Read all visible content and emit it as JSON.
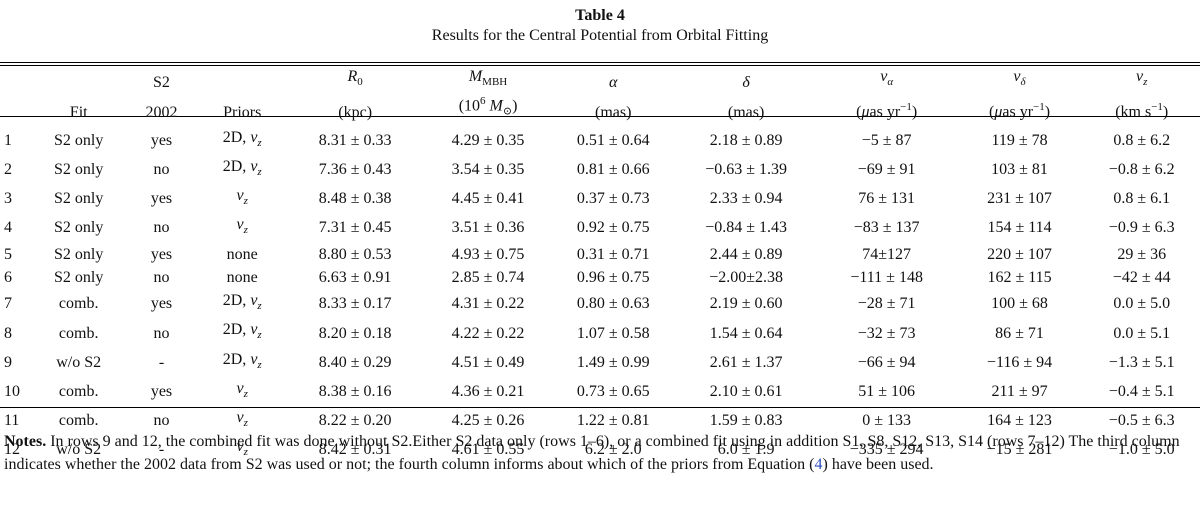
{
  "caption": {
    "label": "Table 4",
    "title": "Results for the Central Potential from Orbital Fitting"
  },
  "headers": {
    "row1": [
      "",
      "",
      "S2",
      "",
      "R0",
      "MMBH",
      "α",
      "δ",
      "vα",
      "vδ",
      "vz"
    ],
    "row2": [
      "",
      "Fit",
      "2002",
      "Priors",
      "(kpc)",
      "(10^6 M⊙)",
      "(mas)",
      "(mas)",
      "(μas yr−1)",
      "(μas yr−1)",
      "(km s−1)"
    ]
  },
  "rows": [
    {
      "n": "1",
      "fit": "S2 only",
      "s2": "yes",
      "priors": "2D, v_z",
      "r0": "8.31 ± 0.33",
      "m": "4.29 ± 0.35",
      "a": "0.51 ± 0.64",
      "d": "2.18 ± 0.89",
      "va": "−5 ± 87",
      "vd": "119 ± 78",
      "vz": "0.8 ± 6.2"
    },
    {
      "n": "2",
      "fit": "S2 only",
      "s2": "no",
      "priors": "2D, v_z",
      "r0": "7.36 ± 0.43",
      "m": "3.54 ± 0.35",
      "a": "0.81 ± 0.66",
      "d": "−0.63 ± 1.39",
      "va": "−69 ± 91",
      "vd": "103 ± 81",
      "vz": "−0.8 ± 6.2"
    },
    {
      "n": "3",
      "fit": "S2 only",
      "s2": "yes",
      "priors": "v_z",
      "r0": "8.48 ± 0.38",
      "m": "4.45 ± 0.41",
      "a": "0.37 ± 0.73",
      "d": "2.33 ± 0.94",
      "va": "76 ± 131",
      "vd": "231 ± 107",
      "vz": "0.8 ± 6.1"
    },
    {
      "n": "4",
      "fit": "S2 only",
      "s2": "no",
      "priors": "v_z",
      "r0": "7.31 ± 0.45",
      "m": "3.51 ± 0.36",
      "a": "0.92 ± 0.75",
      "d": "−0.84 ± 1.43",
      "va": "−83 ± 137",
      "vd": "154 ± 114",
      "vz": "−0.9 ± 6.3"
    },
    {
      "n": "5",
      "fit": "S2 only",
      "s2": "yes",
      "priors": "none",
      "r0": "8.80 ± 0.53",
      "m": "4.93 ± 0.75",
      "a": "0.31 ± 0.71",
      "d": "2.44 ± 0.89",
      "va": "74±127",
      "vd": "220 ± 107",
      "vz": "29 ± 36"
    },
    {
      "n": "6",
      "fit": "S2 only",
      "s2": "no",
      "priors": "none",
      "r0": "6.63 ± 0.91",
      "m": "2.85 ± 0.74",
      "a": "0.96 ± 0.75",
      "d": "−2.00±2.38",
      "va": "−111 ± 148",
      "vd": "162 ± 115",
      "vz": "−42 ± 44"
    },
    {
      "n": "7",
      "fit": "comb.",
      "s2": "yes",
      "priors": "2D, v_z",
      "r0": "8.33 ± 0.17",
      "m": "4.31 ± 0.22",
      "a": "0.80 ± 0.63",
      "d": "2.19 ± 0.60",
      "va": "−28 ± 71",
      "vd": "100 ± 68",
      "vz": "0.0 ± 5.0"
    },
    {
      "n": "8",
      "fit": "comb.",
      "s2": "no",
      "priors": "2D, v_z",
      "r0": "8.20 ± 0.18",
      "m": "4.22 ± 0.22",
      "a": "1.07 ± 0.58",
      "d": "1.54 ± 0.64",
      "va": "−32 ± 73",
      "vd": "86 ± 71",
      "vz": "0.0 ± 5.1"
    },
    {
      "n": "9",
      "fit": "w/o S2",
      "s2": "-",
      "priors": "2D, v_z",
      "r0": "8.40 ± 0.29",
      "m": "4.51 ± 0.49",
      "a": "1.49 ± 0.99",
      "d": "2.61 ± 1.37",
      "va": "−66 ± 94",
      "vd": "−116 ± 94",
      "vz": "−1.3 ± 5.1"
    },
    {
      "n": "10",
      "fit": "comb.",
      "s2": "yes",
      "priors": "v_z",
      "r0": "8.38 ± 0.16",
      "m": "4.36 ± 0.21",
      "a": "0.73 ± 0.65",
      "d": "2.10 ± 0.61",
      "va": "51 ± 106",
      "vd": "211 ± 97",
      "vz": "−0.4 ± 5.1"
    },
    {
      "n": "11",
      "fit": "comb.",
      "s2": "no",
      "priors": "v_z",
      "r0": "8.22 ± 0.20",
      "m": "4.25 ± 0.26",
      "a": "1.22 ± 0.81",
      "d": "1.59 ± 0.83",
      "va": "0 ± 133",
      "vd": "164 ± 123",
      "vz": "−0.5 ± 6.3"
    },
    {
      "n": "12",
      "fit": "w/o S2",
      "s2": "-",
      "priors": "v_z",
      "r0": "8.42 ± 0.31",
      "m": "4.61 ± 0.55",
      "a": "6.2 ± 2.0",
      "d": "6.0 ± 1.9",
      "va": "−335 ± 294",
      "vd": "−15 ± 281",
      "vz": "−1.0 ± 5.0"
    }
  ],
  "notes": {
    "label": "Notes.",
    "text_part1": " In rows 9 and 12, the combined fit was done without S2.Either S2 data only (rows 1–6), or a combined fit using in addition S1, S8, S12, S13, S14 (rows 7–12) The third column indicates whether the 2002 data from S2 was used or not; the fourth column informs about which of the priors from Equation (",
    "link": "4",
    "text_part2": ") have been used."
  }
}
